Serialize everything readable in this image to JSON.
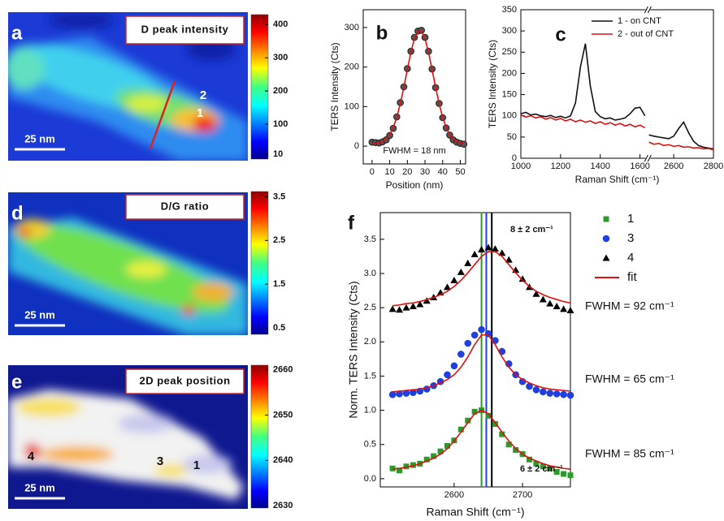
{
  "chart_data": [
    {
      "type": "heatmap",
      "panel": "a",
      "title": "D peak intensity",
      "colormap": "jet",
      "zlim": [
        -5,
        430
      ],
      "zticks": [
        10,
        100,
        200,
        300,
        400
      ],
      "scale_bar": "25 nm",
      "annotations": [
        "1",
        "2"
      ]
    },
    {
      "type": "heatmap",
      "panel": "d",
      "title": "D/G ratio",
      "colormap": "jet",
      "zlim": [
        0.35,
        3.62
      ],
      "zticks": [
        0.5,
        1.5,
        2.5,
        3.5
      ],
      "scale_bar": "25 nm"
    },
    {
      "type": "heatmap",
      "panel": "e",
      "title": "2D peak position",
      "colormap": "jet",
      "zlim": [
        2629.5,
        2661
      ],
      "zticks": [
        2630,
        2640,
        2650,
        2660
      ],
      "scale_bar": "25 nm",
      "annotations": [
        "4",
        "3",
        "1"
      ]
    },
    {
      "type": "line",
      "panel": "b",
      "xlabel": "Position (nm)",
      "ylabel": "TERS Intensity (Cts)",
      "xlim": [
        -5,
        53
      ],
      "xticks": [
        0,
        10,
        20,
        30,
        40,
        50
      ],
      "ylim": [
        -45,
        345
      ],
      "yticks": [
        0,
        100,
        200,
        300
      ],
      "x": [
        0,
        2,
        4,
        6,
        8,
        10,
        12,
        14,
        16,
        18,
        20,
        22,
        24,
        26,
        28,
        30,
        32,
        34,
        36,
        38,
        40,
        42,
        44,
        46,
        48,
        50,
        52
      ],
      "series": [
        {
          "color": "#222222",
          "marker": "circle",
          "values": [
            10,
            9,
            8,
            11,
            16,
            27,
            45,
            74,
            110,
            150,
            196,
            240,
            275,
            291,
            293,
            275,
            240,
            195,
            148,
            108,
            72,
            46,
            28,
            16,
            10,
            7,
            5
          ]
        },
        {
          "color": "#e01010",
          "values": [
            5.6,
            6.3,
            8.1,
            11.6,
            18,
            29,
            47,
            73,
            107,
            149,
            194,
            237,
            272,
            290,
            290,
            272,
            237,
            194,
            149,
            107,
            73,
            47,
            29,
            18,
            11.6,
            8.1,
            6.3
          ]
        }
      ],
      "annotations": [
        "FWHM = 18 nm"
      ]
    },
    {
      "type": "line",
      "panel": "c",
      "xlabel": "Raman Shift (cm⁻¹)",
      "ylabel": "TERS Intensity (Cts)",
      "xlim": [
        1000,
        2800
      ],
      "xbreak": [
        1640,
        2470
      ],
      "xticks": [
        1000,
        1200,
        1400,
        1600,
        2600,
        2800
      ],
      "ylim": [
        0,
        350
      ],
      "yticks": [
        0,
        50,
        100,
        150,
        200,
        250,
        300,
        350
      ],
      "legend": "upper right",
      "x": [
        1000,
        1025,
        1050,
        1075,
        1100,
        1125,
        1150,
        1175,
        1200,
        1225,
        1250,
        1275,
        1300,
        1325,
        1350,
        1375,
        1400,
        1425,
        1450,
        1475,
        1500,
        1525,
        1550,
        1575,
        1600,
        1625,
        2475,
        2500,
        2525,
        2550,
        2575,
        2600,
        2625,
        2650,
        2675,
        2700,
        2725,
        2750,
        2775,
        2800
      ],
      "series": [
        {
          "name": "1 - on CNT",
          "color": "#111111",
          "values": [
            105,
            108,
            102,
            104,
            100,
            98,
            101,
            96,
            99,
            95,
            100,
            130,
            215,
            270,
            170,
            110,
            98,
            93,
            95,
            90,
            92,
            95,
            105,
            118,
            120,
            100,
            55,
            52,
            50,
            48,
            46,
            52,
            70,
            85,
            60,
            40,
            30,
            26,
            24,
            22
          ]
        },
        {
          "name": "2 - out of CNT",
          "color": "#e01010",
          "values": [
            102,
            97,
            100,
            95,
            98,
            92,
            96,
            90,
            94,
            88,
            92,
            86,
            90,
            85,
            88,
            82,
            86,
            80,
            84,
            78,
            82,
            76,
            80,
            74,
            78,
            72,
            38,
            33,
            35,
            30,
            32,
            28,
            30,
            26,
            27,
            24,
            25,
            22,
            23,
            20
          ]
        }
      ]
    },
    {
      "type": "scatter",
      "panel": "f",
      "xlabel": "Raman Shift (cm⁻¹)",
      "ylabel": "Norm. TERS Intensity (Cts)",
      "xlim": [
        2492,
        2770
      ],
      "xticks": [
        2600,
        2700
      ],
      "ylim": [
        -0.12,
        3.89
      ],
      "yticks": [
        {
          "value": 0,
          "label": "0.0"
        },
        0.5,
        {
          "value": 1,
          "label": "1.0"
        },
        1.5,
        {
          "value": 2,
          "label": "2.0"
        },
        2.5,
        {
          "value": 3,
          "label": "3.0"
        },
        3.5
      ],
      "legend": "right",
      "x": [
        2510,
        2520,
        2530,
        2540,
        2550,
        2560,
        2570,
        2580,
        2590,
        2600,
        2610,
        2620,
        2630,
        2640,
        2650,
        2660,
        2670,
        2680,
        2690,
        2700,
        2710,
        2720,
        2730,
        2740,
        2750,
        2760,
        2770
      ],
      "series": [
        {
          "name": "1",
          "color": "#2a9a2a",
          "marker": "square",
          "values": [
            0.15,
            0.12,
            0.18,
            0.2,
            0.22,
            0.28,
            0.33,
            0.4,
            0.48,
            0.56,
            0.72,
            0.85,
            0.98,
            1.0,
            0.92,
            0.8,
            0.65,
            0.5,
            0.42,
            0.36,
            0.28,
            0.22,
            0.18,
            0.15,
            0.1,
            0.07,
            0.05
          ]
        },
        {
          "name": "3",
          "color": "#1f3fe0",
          "marker": "circle",
          "values": [
            1.23,
            1.24,
            1.25,
            1.26,
            1.28,
            1.31,
            1.36,
            1.42,
            1.52,
            1.65,
            1.82,
            1.98,
            2.1,
            2.18,
            2.12,
            2.02,
            1.86,
            1.68,
            1.52,
            1.42,
            1.35,
            1.3,
            1.27,
            1.25,
            1.24,
            1.23,
            1.22
          ]
        },
        {
          "name": "4",
          "color": "#000000",
          "marker": "triangle",
          "values": [
            2.48,
            2.47,
            2.5,
            2.52,
            2.55,
            2.6,
            2.65,
            2.72,
            2.8,
            2.9,
            3.02,
            3.15,
            3.28,
            3.35,
            3.38,
            3.36,
            3.3,
            3.2,
            3.05,
            2.92,
            2.8,
            2.7,
            2.62,
            2.56,
            2.52,
            2.48,
            2.46
          ]
        },
        {
          "name": "fit",
          "color": "#e01010",
          "values": [
            0.14,
            0.15,
            0.17,
            0.19,
            0.22,
            0.26,
            0.3,
            0.36,
            0.44,
            0.55,
            0.68,
            0.82,
            0.95,
            1.0,
            0.95,
            0.82,
            0.68,
            0.55,
            0.44,
            0.36,
            0.3,
            0.26,
            0.22,
            0.19,
            0.17,
            0.15,
            0.14
          ]
        },
        {
          "color": "#e01010",
          "values": [
            1.27,
            1.28,
            1.29,
            1.3,
            1.31,
            1.33,
            1.36,
            1.4,
            1.45,
            1.52,
            1.63,
            1.78,
            1.96,
            2.1,
            2.1,
            1.96,
            1.78,
            1.63,
            1.52,
            1.45,
            1.4,
            1.36,
            1.33,
            1.31,
            1.3,
            1.29,
            1.28
          ]
        },
        {
          "color": "#e01010",
          "values": [
            2.53,
            2.54,
            2.56,
            2.57,
            2.59,
            2.62,
            2.65,
            2.69,
            2.74,
            2.81,
            2.9,
            3.01,
            3.13,
            3.25,
            3.32,
            3.32,
            3.25,
            3.13,
            3.01,
            2.9,
            2.81,
            2.74,
            2.69,
            2.65,
            2.62,
            2.59,
            2.57
          ]
        }
      ],
      "vlines": [
        {
          "x": 2640,
          "color": "#2a9a2a"
        },
        {
          "x": 2647,
          "color": "#1f3fe0"
        },
        {
          "x": 2655,
          "color": "#000000"
        }
      ],
      "annotations": [
        "8 ± 2 cm⁻¹",
        "6 ± 2 cm⁻¹",
        "FWHM = 92 cm⁻¹",
        "FWHM = 65 cm⁻¹",
        "FWHM = 85 cm⁻¹"
      ]
    }
  ]
}
